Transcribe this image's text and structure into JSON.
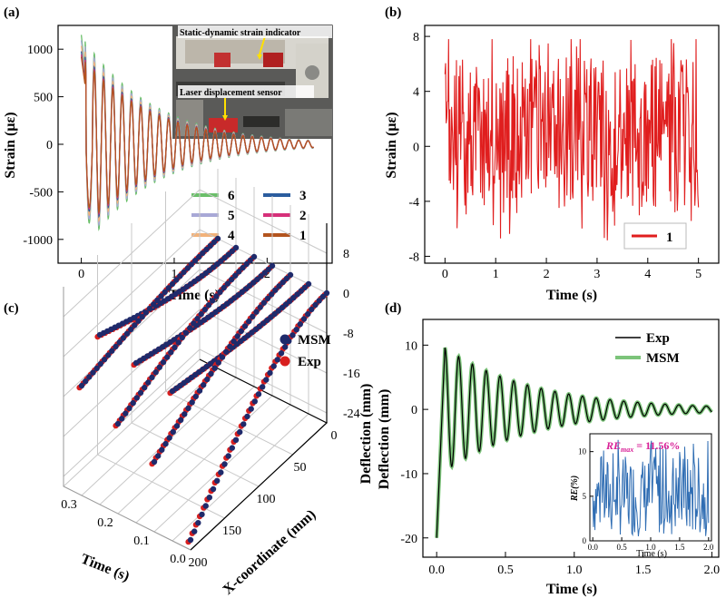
{
  "chart_data": [
    {
      "panel": "(a)",
      "type": "line",
      "xlabel": "Time (s)",
      "ylabel": "Strain (με)",
      "xlim": [
        -0.25,
        2.7
      ],
      "ylim": [
        -1250,
        1250
      ],
      "xticks": [
        "0",
        "1",
        "2"
      ],
      "yticks": [
        "1000",
        "500",
        "0",
        "-500",
        "-1000"
      ],
      "legend_position": "bottom-right",
      "series": [
        {
          "name": "6",
          "color": "#6abf69",
          "amp": 1.0
        },
        {
          "name": "5",
          "color": "#a8a8d6",
          "amp": 0.95
        },
        {
          "name": "4",
          "color": "#f2b27a",
          "amp": 0.9
        },
        {
          "name": "3",
          "color": "#2b5d9e",
          "amp": 0.85
        },
        {
          "name": "2",
          "color": "#d6307a",
          "amp": 0.82
        },
        {
          "name": "1",
          "color": "#b3541e",
          "amp": 0.8
        }
      ],
      "signal": {
        "peak": 1150,
        "decay_tau_s": 0.75,
        "freq_hz": 10,
        "duration_s": 2.5
      },
      "inset_photo": {
        "annotations": [
          "Static-dynamic strain indicator",
          "Laser displacement sensor"
        ]
      }
    },
    {
      "panel": "(b)",
      "type": "line",
      "xlabel": "Time (s)",
      "ylabel": "Strain (με)",
      "xlim": [
        -0.4,
        5.4
      ],
      "ylim": [
        -8.5,
        8.8
      ],
      "xticks": [
        "0",
        "1",
        "2",
        "3",
        "4",
        "5"
      ],
      "yticks": [
        "8",
        "4",
        "0",
        "-4",
        "-8"
      ],
      "legend_position": "bottom-right",
      "series": [
        {
          "name": "1",
          "color": "#e01e1e"
        }
      ],
      "signal": {
        "mean": 1.0,
        "min": -7.8,
        "max": 7.8,
        "duration_s": 5
      }
    },
    {
      "panel": "(c)",
      "type": "scatter",
      "xlabel": "X-coordinate (mm)",
      "ylabel": "Time (s)",
      "zlabel": "Deflection (mm)",
      "x_ticks": [
        "200",
        "150",
        "100",
        "50",
        "0"
      ],
      "t_ticks": [
        "0.3",
        "0.2",
        "0.1",
        "0.0"
      ],
      "z_ticks": [
        "8",
        "0",
        "-8",
        "-16",
        "-24"
      ],
      "legend_position": "top-right",
      "series": [
        {
          "name": "MSM",
          "color": "#1f2a6b"
        },
        {
          "name": "Exp",
          "color": "#d81f1f"
        }
      ]
    },
    {
      "panel": "(d)",
      "type": "line",
      "xlabel": "Time (s)",
      "ylabel": "Deflection (mm)",
      "xlim": [
        -0.1,
        2.05
      ],
      "ylim": [
        -23,
        14
      ],
      "xticks": [
        "0.0",
        "0.5",
        "1.0",
        "1.5",
        "2.0"
      ],
      "yticks": [
        "10",
        "0",
        "-10",
        "-20"
      ],
      "legend_position": "top-right",
      "series": [
        {
          "name": "Exp",
          "color": "#000000"
        },
        {
          "name": "MSM",
          "color": "#7cc47a"
        }
      ],
      "signal": {
        "start": -20,
        "first_peak": 9.6,
        "freq_hz": 10,
        "decay_tau_s": 0.65
      },
      "inset": {
        "annotation": "RE",
        "annotation_sub": "max",
        "annotation_value": " = 11.56%",
        "ylabel": "RE(%)",
        "xlabel": "Time (s)",
        "xticks": [
          "0.0",
          "0.5",
          "1.0",
          "1.5",
          "2.0"
        ],
        "yticks": [
          "10",
          "5",
          "0"
        ],
        "xlim": [
          -0.05,
          2.05
        ],
        "ylim": [
          0,
          12
        ],
        "color": "#2f6db3"
      }
    }
  ]
}
